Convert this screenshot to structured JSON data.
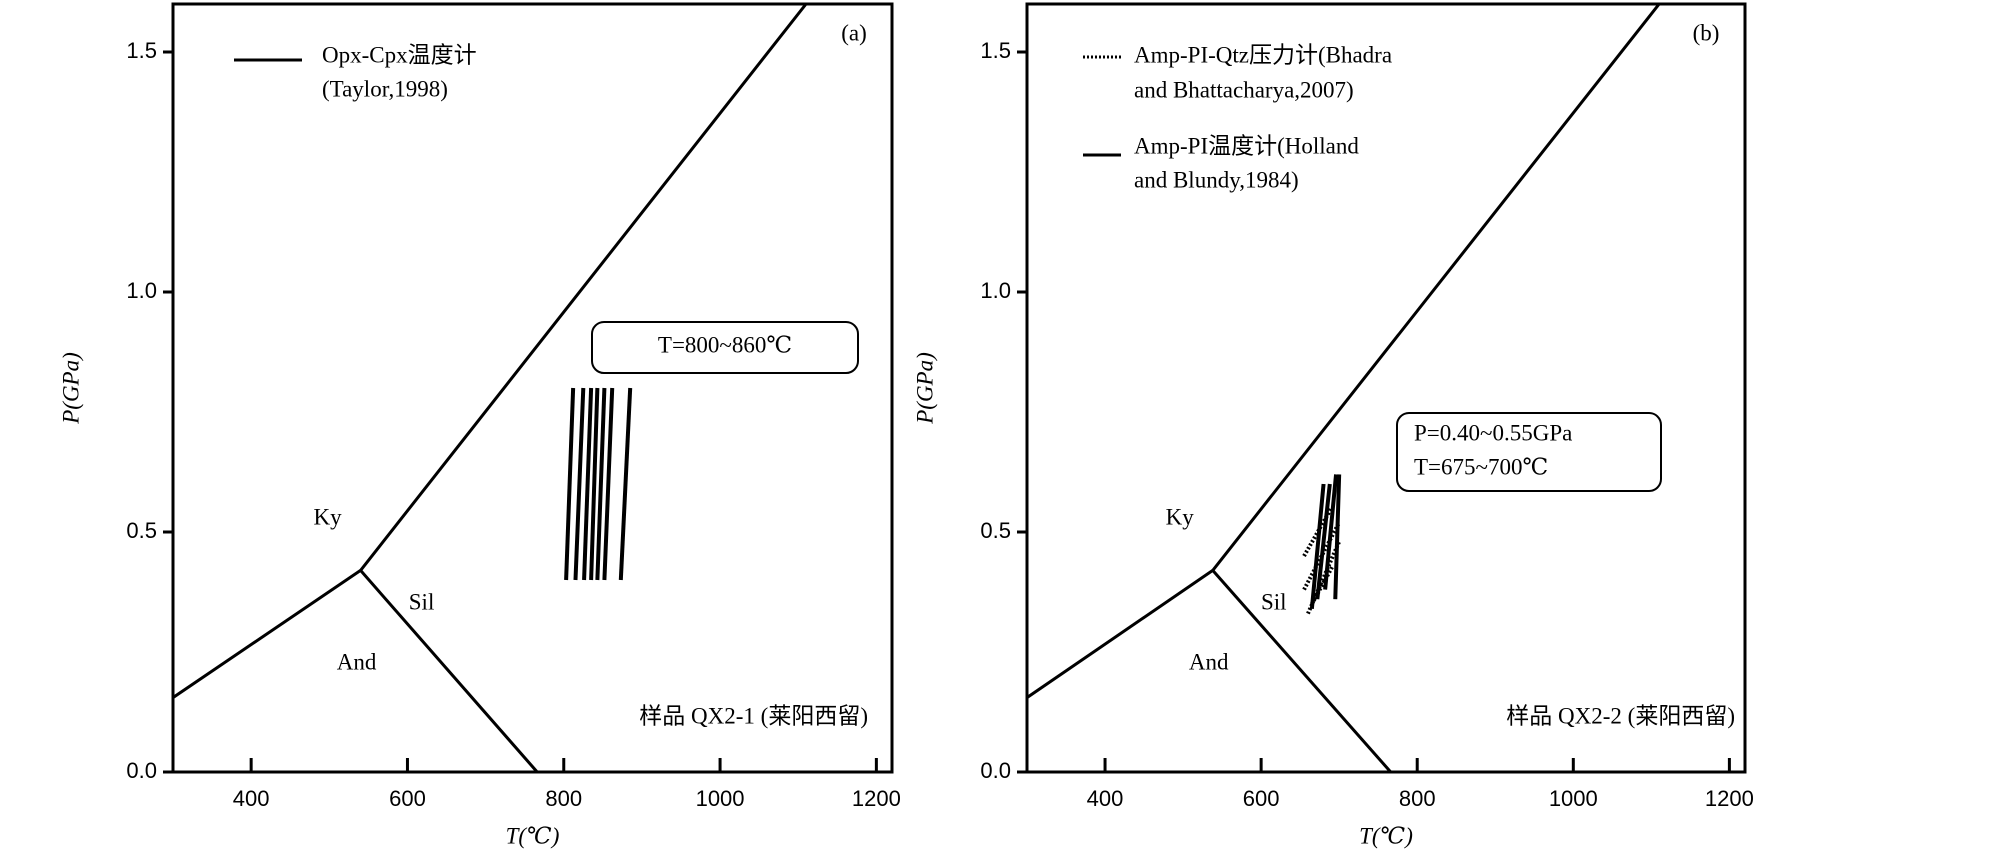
{
  "chart_data": [
    {
      "type": "pt-diagram",
      "panel": "(a)",
      "xlabel": "T(℃)",
      "ylabel": "P(GPa)",
      "xlim": [
        300,
        1220
      ],
      "ylim": [
        0,
        1.6
      ],
      "xticks": [
        400,
        600,
        800,
        1000,
        1200
      ],
      "yticks": [
        {
          "value": 0,
          "label": "0.0"
        },
        0.5,
        {
          "value": 1,
          "label": "1.0"
        },
        1.5
      ],
      "boundaries": [
        {
          "x": [
            300,
            540
          ],
          "y": [
            0.155,
            0.42
          ]
        },
        {
          "x": [
            540,
            1110
          ],
          "y": [
            0.42,
            1.6
          ]
        },
        {
          "x": [
            540,
            766
          ],
          "y": [
            0.42,
            0
          ]
        }
      ],
      "fields": [
        "Ky",
        "Sil",
        "And"
      ],
      "series": [
        {
          "legend": [
            "Opx-Cpx温度计",
            "(Taylor,1998)"
          ],
          "style": "solid",
          "color": "#000000",
          "segments": [
            {
              "x": [
                803,
                812
              ],
              "y": [
                0.4,
                0.8
              ]
            },
            {
              "x": [
                815,
                825
              ],
              "y": [
                0.4,
                0.8
              ]
            },
            {
              "x": [
                826,
                835
              ],
              "y": [
                0.4,
                0.8
              ]
            },
            {
              "x": [
                835,
                843
              ],
              "y": [
                0.4,
                0.8
              ]
            },
            {
              "x": [
                843,
                852
              ],
              "y": [
                0.4,
                0.8
              ]
            },
            {
              "x": [
                852,
                862
              ],
              "y": [
                0.4,
                0.8
              ]
            },
            {
              "x": [
                873,
                885
              ],
              "y": [
                0.4,
                0.8
              ]
            }
          ]
        }
      ],
      "annotation": [
        "T=800~860℃"
      ],
      "sample": "样品 QX2-1 (莱阳西留)"
    },
    {
      "type": "pt-diagram",
      "panel": "(b)",
      "xlabel": "T(℃)",
      "ylabel": "P(GPa)",
      "xlim": [
        300,
        1220
      ],
      "ylim": [
        0,
        1.6
      ],
      "xticks": [
        400,
        600,
        800,
        1000,
        1200
      ],
      "yticks": [
        {
          "value": 0,
          "label": "0.0"
        },
        0.5,
        {
          "value": 1,
          "label": "1.0"
        },
        1.5
      ],
      "boundaries": [
        {
          "x": [
            300,
            538
          ],
          "y": [
            0.155,
            0.42
          ]
        },
        {
          "x": [
            538,
            1110
          ],
          "y": [
            0.42,
            1.6
          ]
        },
        {
          "x": [
            538,
            766
          ],
          "y": [
            0.42,
            0
          ]
        }
      ],
      "fields": [
        "Ky",
        "Sil",
        "And"
      ],
      "series": [
        {
          "legend": [
            "Amp-PI-Qtz压力计(Bhadra",
            "and Bhattacharya,2007)"
          ],
          "style": "dotted",
          "color": "#000000",
          "segments": [
            {
              "x": [
                655,
                700
              ],
              "y": [
                0.38,
                0.52
              ]
            },
            {
              "x": [
                660,
                700
              ],
              "y": [
                0.33,
                0.48
              ]
            },
            {
              "x": [
                655,
                690
              ],
              "y": [
                0.45,
                0.55
              ]
            },
            {
              "x": [
                665,
                692
              ],
              "y": [
                0.35,
                0.43
              ]
            }
          ]
        },
        {
          "legend": [
            "Amp-PI温度计(Holland",
            "and Blundy,1984)"
          ],
          "style": "solid",
          "color": "#000000",
          "segments": [
            {
              "x": [
                665,
                680
              ],
              "y": [
                0.34,
                0.6
              ]
            },
            {
              "x": [
                672,
                688
              ],
              "y": [
                0.36,
                0.6
              ]
            },
            {
              "x": [
                682,
                696
              ],
              "y": [
                0.38,
                0.62
              ]
            },
            {
              "x": [
                695,
                700
              ],
              "y": [
                0.36,
                0.62
              ]
            }
          ]
        }
      ],
      "annotation": [
        "P=0.40~0.55GPa",
        "T=675~700℃"
      ],
      "sample": "样品 QX2-2 (莱阳西留)"
    }
  ]
}
